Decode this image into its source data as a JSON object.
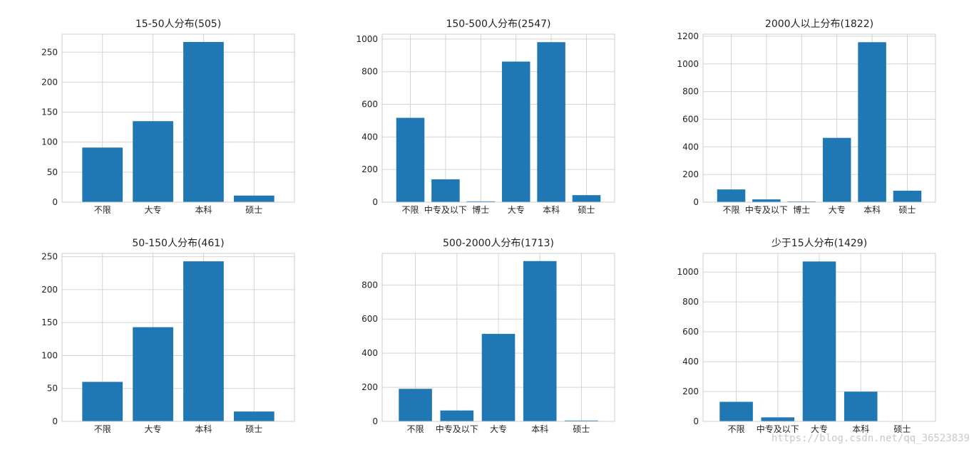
{
  "chart_data": [
    {
      "type": "bar",
      "title": "15-50人分布(505)",
      "categories": [
        "不限",
        "大专",
        "本科",
        "硕士"
      ],
      "values": [
        91,
        135,
        267,
        11
      ],
      "ylim": [
        0,
        280
      ],
      "yticks": [
        0,
        50,
        100,
        150,
        200,
        250
      ],
      "grid": true,
      "color": "#1f77b4"
    },
    {
      "type": "bar",
      "title": "150-500人分布(2547)",
      "categories": [
        "不限",
        "中专及以下",
        "博士",
        "大专",
        "本科",
        "硕士"
      ],
      "values": [
        517,
        140,
        5,
        862,
        981,
        43
      ],
      "ylim": [
        0,
        1030
      ],
      "yticks": [
        0,
        200,
        400,
        600,
        800,
        1000
      ],
      "grid": true,
      "color": "#1f77b4"
    },
    {
      "type": "bar",
      "title": "2000人以上分布(1822)",
      "categories": [
        "不限",
        "中专及以下",
        "博士",
        "大专",
        "本科",
        "硕士"
      ],
      "values": [
        92,
        20,
        5,
        465,
        1157,
        83
      ],
      "ylim": [
        0,
        1215
      ],
      "yticks": [
        0,
        200,
        400,
        600,
        800,
        1000,
        1200
      ],
      "grid": true,
      "color": "#1f77b4"
    },
    {
      "type": "bar",
      "title": "50-150人分布(461)",
      "categories": [
        "不限",
        "大专",
        "本科",
        "硕士"
      ],
      "values": [
        60,
        143,
        243,
        15
      ],
      "ylim": [
        0,
        255
      ],
      "yticks": [
        0,
        50,
        100,
        150,
        200,
        250
      ],
      "grid": true,
      "color": "#1f77b4"
    },
    {
      "type": "bar",
      "title": "500-2000人分布(1713)",
      "categories": [
        "不限",
        "中专及以下",
        "大专",
        "本科",
        "硕士"
      ],
      "values": [
        191,
        64,
        513,
        940,
        5
      ],
      "ylim": [
        0,
        985
      ],
      "yticks": [
        0,
        200,
        400,
        600,
        800
      ],
      "grid": true,
      "color": "#1f77b4"
    },
    {
      "type": "bar",
      "title": "少于15人分布(1429)",
      "categories": [
        "不限",
        "中专及以下",
        "大专",
        "本科",
        "硕士"
      ],
      "values": [
        131,
        27,
        1071,
        199,
        1
      ],
      "ylim": [
        0,
        1125
      ],
      "yticks": [
        0,
        200,
        400,
        600,
        800,
        1000
      ],
      "grid": true,
      "color": "#1f77b4"
    }
  ],
  "watermark": "https://blog.csdn.net/qq_36523839"
}
